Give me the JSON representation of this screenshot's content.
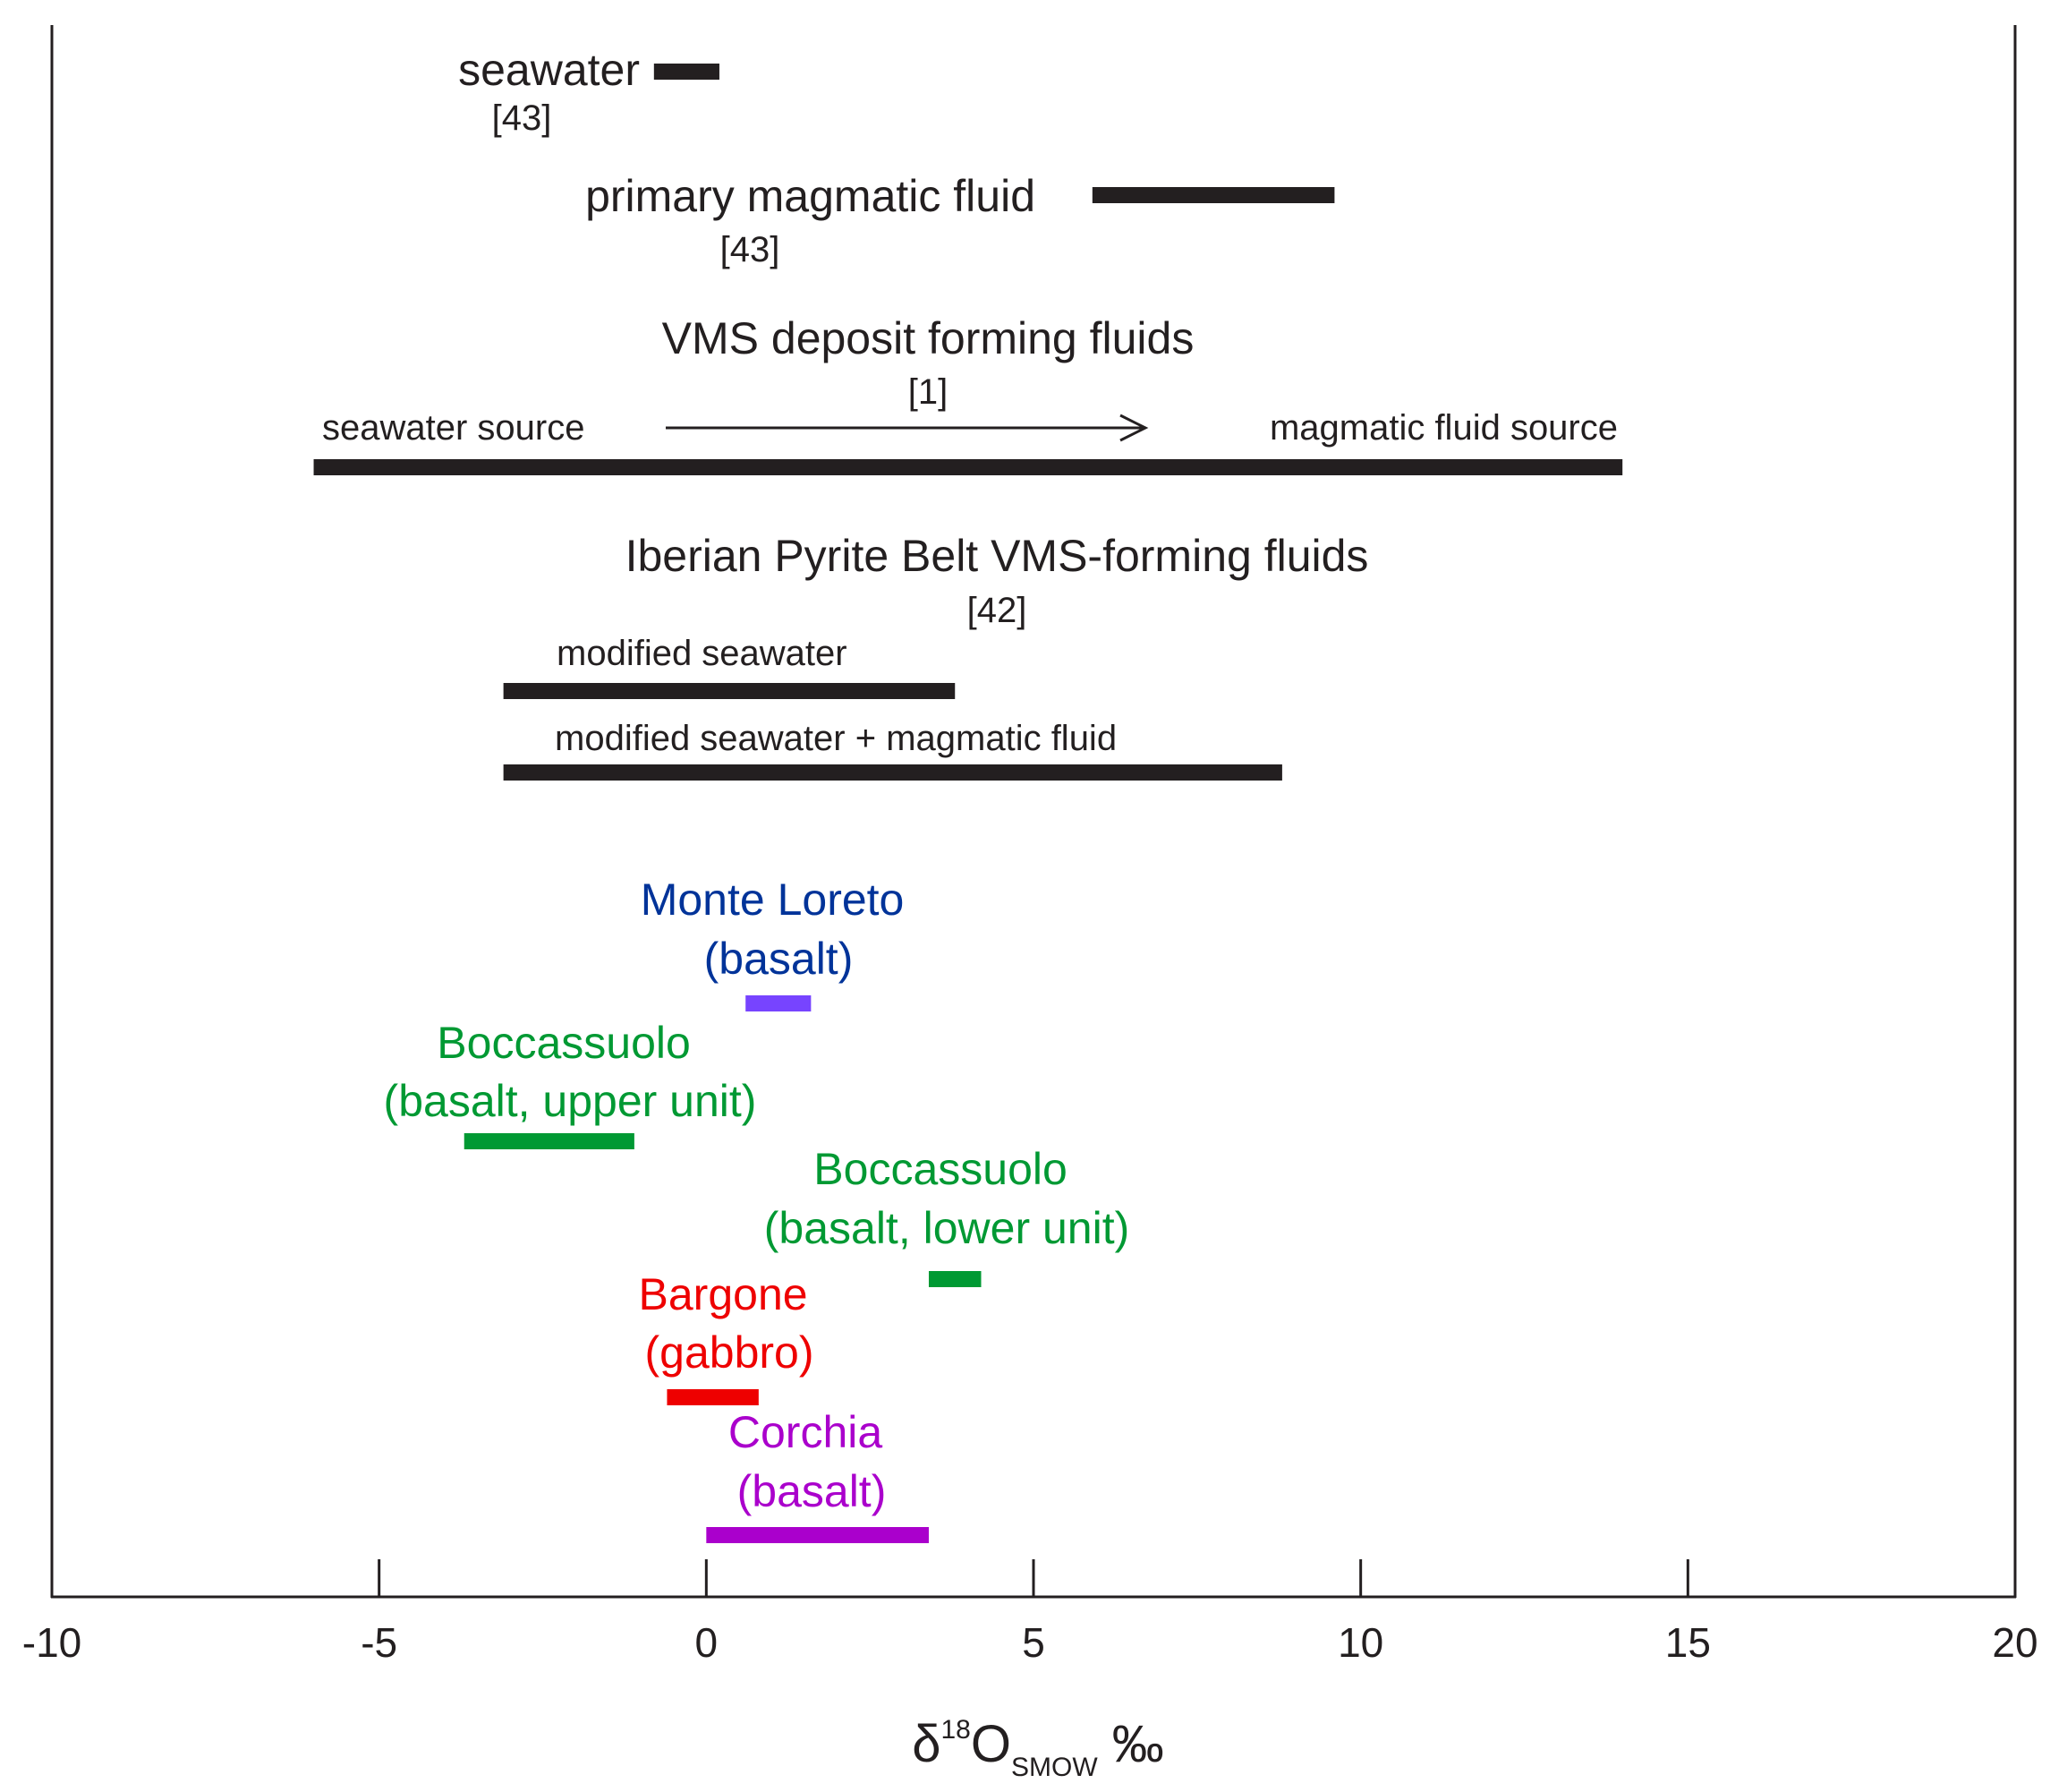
{
  "chart_data": {
    "type": "range",
    "xlim": [
      -10,
      20
    ],
    "xticks": [
      "-10",
      "-5",
      "0",
      "5",
      "10",
      "15",
      "20"
    ],
    "xlabel": {
      "prefix": "δ",
      "sup": "18",
      "main": "O",
      "sub": "SMOW",
      "unit": " ‰"
    },
    "grid": false,
    "colors": {
      "black": "#231f20",
      "monte_loreto": "#003399",
      "monte_loreto_bar": "#7744ff",
      "boccassuolo": "#009933",
      "bargone": "#ee0000",
      "corchia": "#aa00cc"
    },
    "ranges": [
      {
        "id": "seawater",
        "label": "seawater",
        "ref": "[43]",
        "min": -0.8,
        "max": 0.2,
        "color": "black"
      },
      {
        "id": "primary-magmatic",
        "label": "primary magmatic fluid",
        "ref": "[43]",
        "min": 5.9,
        "max": 9.6,
        "color": "black"
      },
      {
        "id": "vms",
        "title": "VMS deposit forming fluids",
        "ref": "[1]",
        "left_label": "seawater source",
        "right_label": "magmatic fluid source",
        "min": -6,
        "max": 14,
        "color": "black"
      },
      {
        "id": "ipb-modified-seawater",
        "label": "modified seawater",
        "min": -3.1,
        "max": 3.8,
        "color": "black"
      },
      {
        "id": "ipb-mixed",
        "label": "modified seawater + magmatic fluid",
        "min": -3.1,
        "max": 8.8,
        "color": "black"
      },
      {
        "id": "monte-loreto",
        "label_lines": [
          "Monte Loreto",
          "(basalt)"
        ],
        "min": 0.6,
        "max": 1.6,
        "text_color": "monte_loreto",
        "color": "monte_loreto_bar"
      },
      {
        "id": "boccassuolo-upper",
        "label_lines": [
          "Boccassuolo",
          "(basalt, upper unit)"
        ],
        "min": -3.7,
        "max": -1.1,
        "color": "boccassuolo"
      },
      {
        "id": "boccassuolo-lower",
        "label_lines": [
          "Boccassuolo",
          "(basalt, lower unit)"
        ],
        "min": 3.4,
        "max": 4.2,
        "color": "boccassuolo"
      },
      {
        "id": "bargone",
        "label_lines": [
          "Bargone",
          "(gabbro)"
        ],
        "min": -0.6,
        "max": 0.8,
        "color": "bargone"
      },
      {
        "id": "corchia",
        "label_lines": [
          "Corchia",
          "(basalt)"
        ],
        "min": 0,
        "max": 3.4,
        "color": "corchia"
      }
    ],
    "group_title": "Iberian Pyrite Belt VMS-forming fluids",
    "group_ref": "[42]"
  }
}
